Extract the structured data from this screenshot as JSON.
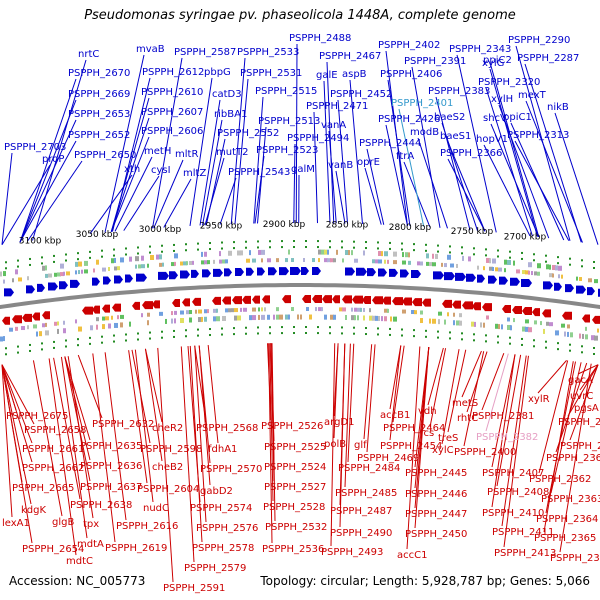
{
  "title": "Pseudomonas syringae pv. phaseolicola 1448A, complete genome",
  "footer": {
    "accession": "Accession: NC_005773",
    "summary": "Topology: circular; Length: 5,928,787 bp; Genes: 5,066"
  },
  "colors": {
    "forward": "#0000cc",
    "reverse": "#cc0000",
    "backbone": "#888888",
    "tick": "#228b22",
    "highlight_top": "#3399cc",
    "highlight_bottom": "#e6a0c4"
  },
  "scale_labels": [
    "3100 kbp",
    "3050 kbp",
    "3000 kbp",
    "2950 kbp",
    "2900 kbp",
    "2850 kbp",
    "2800 kbp",
    "2750 kbp",
    "2700 kbp"
  ],
  "top_genes": [
    "PSPPH_2703",
    "proP",
    "PSPPH_2650",
    "PSPPH_2652",
    "PSPPH_2653",
    "PSPPH_2669",
    "PSPPH_2670",
    "nrtC",
    "xth",
    "mvaB",
    "PSPPH_2612",
    "PSPPH_2610",
    "PSPPH_2607",
    "PSPPH_2606",
    "metH",
    "cysI",
    "mltR",
    "mltZ",
    "PSPPH_2587",
    "pbpG",
    "catD3",
    "ribBA1",
    "PSPPH_2552",
    "mutT2",
    "PSPPH_2543",
    "PSPPH_2533",
    "PSPPH_2531",
    "PSPPH_2515",
    "PSPPH_2513",
    "PSPPH_2523",
    "galM",
    "PSPPH_2488",
    "PSPPH_2467",
    "galE",
    "aspB",
    "PSPPH_2471",
    "PSPPH_2452",
    "vanA",
    "PSPPH_2494",
    "vanB",
    "oprE",
    "PSPPH_2444",
    "PSPPH_2426",
    "ftrA",
    "PSPPH_2402",
    "PSPPH_2391",
    "PSPPH_2406",
    "PSPPH_2401",
    "modB",
    "PSPPH_2383",
    "baeS2",
    "baeS1",
    "PSPPH_2366",
    "xylG",
    "ppiC2",
    "PSPPH_2343",
    "xylH",
    "shcV",
    "hopV1",
    "PSPPH_2320",
    "ppiC1",
    "PSPPH_2290",
    "PSPPH_2287",
    "mexT",
    "nikB",
    "PSPPH_2313"
  ],
  "bottom_genes": [
    "PSPPH_2675",
    "PSPPH_2658",
    "PSPPH_2661",
    "PSPPH_2662",
    "PSPPH_2665",
    "lexA1",
    "kdgK",
    "PSPPH_2654",
    "glgB",
    "mdtC",
    "mdtA",
    "tpx",
    "PSPPH_2638",
    "PSPPH_2637",
    "PSPPH_2636",
    "PSPPH_2635",
    "PSPPH_2632",
    "PSPPH_2616",
    "PSPPH_2619",
    "nudC",
    "PSPPH_2604",
    "cheB2",
    "cheR2",
    "PSPPH_2598",
    "fdhA1",
    "PSPPH_2568",
    "PSPPH_2570",
    "gabD2",
    "PSPPH_2574",
    "PSPPH_2576",
    "PSPPH_2578",
    "PSPPH_2579",
    "PSPPH_2591",
    "PSPPH_2526",
    "PSPPH_2525",
    "PSPPH_2524",
    "PSPPH_2527",
    "PSPPH_2528",
    "PSPPH_2532",
    "PSPPH_2536",
    "argD1",
    "polB",
    "glf",
    "PSPPH_2484",
    "PSPPH_2485",
    "PSPPH_2487",
    "PSPPH_2490",
    "PSPPH_2493",
    "accB1",
    "PSPPH_2464",
    "PSPPH_2469",
    "PSPPH_2454",
    "PSPPH_2445",
    "PSPPH_2446",
    "PSPPH_2447",
    "PSPPH_2450",
    "accC1",
    "vdh",
    "fcs",
    "treS",
    "xylC",
    "metS",
    "rhtC",
    "PSPPH_2382",
    "PSPPH_2381",
    "PSPPH_2400",
    "PSPPH_2407",
    "PSPPH_2408",
    "PSPPH_2410",
    "PSPPH_2411",
    "PSPPH_2413",
    "xylR",
    "gacA",
    "uvrC",
    "pgsA",
    "PSPPH_2346",
    "PSPPH_2349",
    "PSPPH_2361",
    "PSPPH_2362",
    "PSPPH_2363",
    "PSPPH_2364",
    "PSPPH_2365",
    "PSPPH_2367"
  ]
}
